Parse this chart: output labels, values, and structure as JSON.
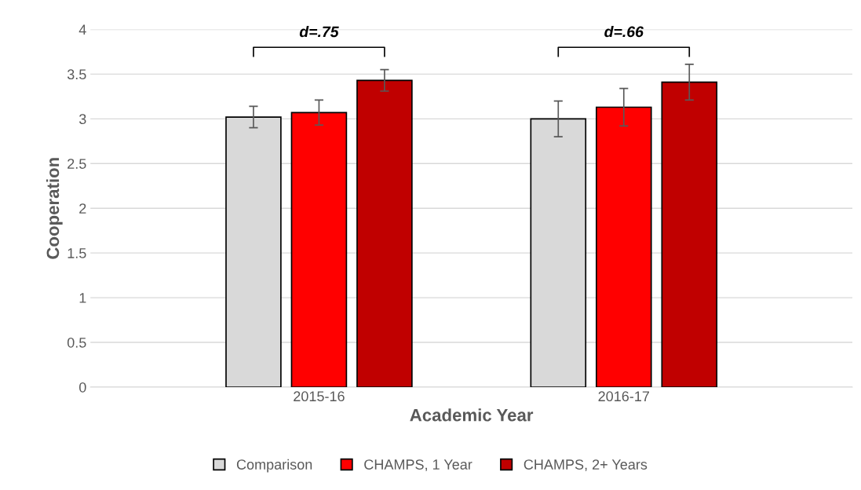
{
  "chart_data": {
    "type": "bar",
    "xlabel": "Academic Year",
    "ylabel": "Cooperation",
    "categories": [
      "2015-16",
      "2016-17"
    ],
    "series": [
      {
        "name": "Comparison",
        "color": "#d9d9d9",
        "values": [
          3.02,
          3.0
        ],
        "errors": [
          0.12,
          0.2
        ]
      },
      {
        "name": "CHAMPS, 1 Year",
        "color": "#ff0000",
        "values": [
          3.07,
          3.13
        ],
        "errors": [
          0.14,
          0.21
        ]
      },
      {
        "name": "CHAMPS, 2+ Years",
        "color": "#c00000",
        "values": [
          3.43,
          3.41
        ],
        "errors": [
          0.12,
          0.2
        ]
      }
    ],
    "ylim": [
      0,
      4
    ],
    "yticks": [
      0,
      0.5,
      1,
      1.5,
      2,
      2.5,
      3,
      3.5,
      4
    ],
    "grid": "y",
    "legend": "bottom",
    "annotations": [
      "d=.75",
      "d=.66"
    ]
  }
}
